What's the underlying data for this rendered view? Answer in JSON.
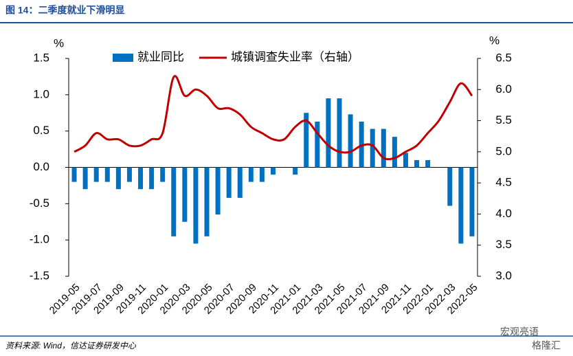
{
  "chart_data": {
    "type": "bar_line",
    "title": "图 14：二季度就业下滑明显",
    "source": "资料来源: Wind，信达证券研发中心",
    "y_unit": "%",
    "y2_unit": "%",
    "watermark": [
      "宏观亮语",
      "格隆汇"
    ],
    "categories": [
      "2019-05",
      null,
      "2019-07",
      null,
      "2019-09",
      null,
      "2019-11",
      null,
      "2020-01",
      null,
      "2020-03",
      null,
      "2020-05",
      null,
      "2020-07",
      null,
      "2020-09",
      null,
      "2020-11",
      null,
      "2021-01",
      null,
      "2021-03",
      null,
      "2021-05",
      null,
      "2021-07",
      null,
      "2021-09",
      null,
      "2021-11",
      null,
      "2022-01",
      null,
      "2022-03",
      null,
      "2022-05"
    ],
    "series": [
      {
        "name": "就业同比",
        "type": "bar",
        "color": "#0070c0",
        "values": [
          -0.2,
          -0.3,
          -0.2,
          -0.2,
          -0.3,
          -0.2,
          -0.3,
          -0.3,
          -0.2,
          -0.95,
          -0.75,
          -1.05,
          -0.95,
          -0.65,
          -0.42,
          -0.42,
          -0.2,
          -0.2,
          -0.1,
          0,
          -0.1,
          0.75,
          0.63,
          0.95,
          0.95,
          0.73,
          0.63,
          0.53,
          0.53,
          0.42,
          0.2,
          0.1,
          0.1,
          0,
          -0.53,
          -1.05,
          -0.95
        ]
      },
      {
        "name": "城镇调查失业率（右轴）",
        "type": "line",
        "axis": "y2",
        "color": "#c00000",
        "values": [
          5.0,
          5.1,
          5.3,
          5.2,
          5.2,
          5.1,
          5.1,
          5.2,
          5.3,
          6.2,
          5.9,
          6.0,
          5.9,
          5.7,
          5.7,
          5.6,
          5.4,
          5.3,
          5.2,
          5.2,
          5.4,
          5.5,
          5.3,
          5.1,
          5.0,
          5.0,
          5.1,
          5.1,
          4.9,
          4.9,
          5.0,
          5.1,
          5.3,
          5.5,
          5.8,
          6.1,
          5.9
        ]
      }
    ],
    "ylim": [
      -1.5,
      1.5
    ],
    "yticks": [
      -1.5,
      {
        "value": -1,
        "label": "-1.0"
      },
      -0.5,
      {
        "value": 0,
        "label": "0.0"
      },
      0.5,
      {
        "value": 1,
        "label": "1.0"
      },
      1.5
    ],
    "y2lim": [
      3,
      6.5
    ],
    "y2ticks": [
      {
        "value": 3,
        "label": "3.0"
      },
      3.5,
      {
        "value": 4,
        "label": "4.0"
      },
      4.5,
      {
        "value": 5,
        "label": "5.0"
      },
      5.5,
      {
        "value": 6,
        "label": "6.0"
      },
      6.5
    ],
    "legend": "top"
  }
}
